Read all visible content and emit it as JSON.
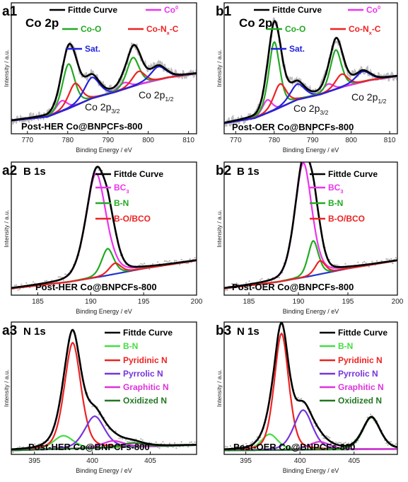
{
  "figure": {
    "panels": [
      {
        "id": "a1",
        "tag": "a1",
        "element": "Co 2p",
        "sample": "Post-HER Co@BNPCFs-800",
        "xlabel": "Binding Energy / eV",
        "ylabel": "Intensity / a.u.",
        "xlim": [
          766,
          812
        ],
        "xticks": [
          770,
          780,
          790,
          800,
          810
        ],
        "annotations": [
          {
            "text": "Co 2p",
            "sub": "3/2"
          },
          {
            "text": "Co 2p",
            "sub": "1/2"
          }
        ],
        "legend": [
          {
            "name": "Fittde Curve",
            "color": "#000000"
          },
          {
            "name": "Co",
            "sup": "0",
            "color": "#ee33ee"
          },
          {
            "name": "Co-O",
            "color": "#22aa22"
          },
          {
            "name": "Co-N",
            "sub": "x",
            "suffix": "-C",
            "color": "#ee2222"
          },
          {
            "name": "Sat.",
            "color": "#2222dd"
          }
        ]
      },
      {
        "id": "b1",
        "tag": "b1",
        "element": "Co 2p",
        "sample": "Post-OER Co@BNPCFs-800",
        "xlabel": "Binding Energy / eV",
        "ylabel": "Intensity / a.u.",
        "xlim": [
          767,
          812
        ],
        "xticks": [
          770,
          780,
          790,
          800,
          810
        ],
        "annotations": [
          {
            "text": "Co 2p",
            "sub": "3/2"
          },
          {
            "text": "Co 2p",
            "sub": "1/2"
          }
        ],
        "legend": [
          {
            "name": "Fittde Curve",
            "color": "#000000"
          },
          {
            "name": "Co",
            "sup": "0",
            "color": "#ee33ee"
          },
          {
            "name": "Co-O",
            "color": "#22aa22"
          },
          {
            "name": "Co-N",
            "sub": "x",
            "suffix": "-C",
            "color": "#ee2222"
          },
          {
            "name": "Sat.",
            "color": "#2222dd"
          }
        ]
      },
      {
        "id": "a2",
        "tag": "a2",
        "element": "B 1s",
        "sample": "Post-HER Co@BNPCFs-800",
        "xlabel": "Binding Energy / eV",
        "ylabel": "Intensity / a.u.",
        "xlim": [
          182.5,
          200
        ],
        "xticks": [
          185,
          190,
          195,
          200
        ],
        "legend": [
          {
            "name": "Fittde Curve",
            "color": "#000000"
          },
          {
            "name": "BC",
            "sub": "3",
            "color": "#ee33ee"
          },
          {
            "name": "B-N",
            "color": "#22aa22"
          },
          {
            "name": "B-O/BCO",
            "color": "#ee2222"
          }
        ]
      },
      {
        "id": "b2",
        "tag": "b2",
        "element": "B 1s",
        "sample": "Post-OER Co@BNPCFs-800",
        "xlabel": "Binding Energy / eV",
        "ylabel": "Intensity / a.u.",
        "xlim": [
          182.5,
          200
        ],
        "xticks": [
          185,
          190,
          195,
          200
        ],
        "legend": [
          {
            "name": "Fittde Curve",
            "color": "#000000"
          },
          {
            "name": "BC",
            "sub": "3",
            "color": "#ee33ee"
          },
          {
            "name": "B-N",
            "color": "#22aa22"
          },
          {
            "name": "B-O/BCO",
            "color": "#ee2222"
          }
        ]
      },
      {
        "id": "a3",
        "tag": "a3",
        "element": "N 1s",
        "sample": "Post-HER Co@BNPCFs-800",
        "xlabel": "Binding Energy / eV",
        "ylabel": "Intensity / a.u.",
        "xlim": [
          393,
          409
        ],
        "xticks": [
          395,
          400,
          405
        ],
        "legend": [
          {
            "name": "Fittde Curve",
            "color": "#000000"
          },
          {
            "name": "B-N",
            "color": "#44dd44"
          },
          {
            "name": "Pyridinic N",
            "color": "#ee2222"
          },
          {
            "name": "Pyrrolic N",
            "color": "#7733dd"
          },
          {
            "name": "Graphitic N",
            "color": "#dd33dd"
          },
          {
            "name": "Oxidized N",
            "color": "#227722"
          }
        ]
      },
      {
        "id": "b3",
        "tag": "b3",
        "element": "N 1s",
        "sample": "Post-OER Co@BNPCFs-800",
        "xlabel": "Binding Energy / eV",
        "ylabel": "Intensity / a.u.",
        "xlim": [
          393,
          409
        ],
        "xticks": [
          395,
          400,
          405
        ],
        "legend": [
          {
            "name": "Fittde Curve",
            "color": "#000000"
          },
          {
            "name": "B-N",
            "color": "#44dd44"
          },
          {
            "name": "Pyridinic N",
            "color": "#ee2222"
          },
          {
            "name": "Pyrrolic N",
            "color": "#7733dd"
          },
          {
            "name": "Graphitic N",
            "color": "#dd33dd"
          },
          {
            "name": "Oxidized N",
            "color": "#227722"
          }
        ]
      }
    ]
  },
  "chart_data": [
    {
      "type": "line",
      "panel": "a1",
      "xlim": [
        766,
        812
      ],
      "ylim": [
        0,
        1
      ],
      "background": {
        "color": "#2233cc",
        "points": [
          [
            766,
            0.1
          ],
          [
            775,
            0.13
          ],
          [
            780,
            0.19
          ],
          [
            786,
            0.27
          ],
          [
            792,
            0.32
          ],
          [
            798,
            0.38
          ],
          [
            805,
            0.43
          ],
          [
            812,
            0.46
          ]
        ]
      },
      "peaks": [
        {
          "name": "Co",
          "color": "#ee33ee",
          "center": 778.5,
          "height": 0.08,
          "width": 1.4
        },
        {
          "name": "Co-O",
          "color": "#22aa22",
          "center": 780.2,
          "height": 0.34,
          "width": 1.6
        },
        {
          "name": "Co-N-C",
          "color": "#ee2222",
          "center": 781.8,
          "height": 0.17,
          "width": 1.7
        },
        {
          "name": "Sat.",
          "color": "#2222dd",
          "center": 786.0,
          "height": 0.16,
          "width": 2.0
        },
        {
          "name": "Co",
          "color": "#ee33ee",
          "center": 794.0,
          "height": 0.05,
          "width": 1.5
        },
        {
          "name": "Co-O",
          "color": "#22aa22",
          "center": 796.2,
          "height": 0.22,
          "width": 1.6
        },
        {
          "name": "Co-N-C",
          "color": "#ee2222",
          "center": 797.6,
          "height": 0.1,
          "width": 1.7
        },
        {
          "name": "Sat.",
          "color": "#2222dd",
          "center": 802.5,
          "height": 0.1,
          "width": 2.0
        }
      ]
    },
    {
      "type": "line",
      "panel": "b1",
      "xlim": [
        767,
        812
      ],
      "ylim": [
        0,
        1
      ],
      "background": {
        "color": "#2233cc",
        "points": [
          [
            767,
            0.08
          ],
          [
            775,
            0.12
          ],
          [
            780,
            0.18
          ],
          [
            786,
            0.26
          ],
          [
            792,
            0.3
          ],
          [
            798,
            0.36
          ],
          [
            805,
            0.41
          ],
          [
            812,
            0.44
          ]
        ]
      },
      "peaks": [
        {
          "name": "Co",
          "color": "#ee33ee",
          "center": 778.2,
          "height": 0.1,
          "width": 1.3
        },
        {
          "name": "Co-O",
          "color": "#22aa22",
          "center": 780.0,
          "height": 0.52,
          "width": 1.5
        },
        {
          "name": "Co-N-C",
          "color": "#ee2222",
          "center": 781.5,
          "height": 0.18,
          "width": 1.7
        },
        {
          "name": "Sat.",
          "color": "#2222dd",
          "center": 786.0,
          "height": 0.12,
          "width": 2.0
        },
        {
          "name": "Co",
          "color": "#ee33ee",
          "center": 794.0,
          "height": 0.06,
          "width": 1.4
        },
        {
          "name": "Co-O",
          "color": "#22aa22",
          "center": 796.0,
          "height": 0.3,
          "width": 1.5
        },
        {
          "name": "Co-N-C",
          "color": "#ee2222",
          "center": 797.5,
          "height": 0.1,
          "width": 1.7
        },
        {
          "name": "Sat.",
          "color": "#2222dd",
          "center": 803.0,
          "height": 0.08,
          "width": 2.0
        }
      ]
    },
    {
      "type": "line",
      "panel": "a2",
      "xlim": [
        182.5,
        200
      ],
      "ylim": [
        0,
        1
      ],
      "background": {
        "color": "#2233cc",
        "points": [
          [
            182.5,
            0.05
          ],
          [
            188,
            0.1
          ],
          [
            191,
            0.14
          ],
          [
            195,
            0.2
          ],
          [
            200,
            0.26
          ]
        ]
      },
      "peaks": [
        {
          "name": "BC3",
          "color": "#ee33ee",
          "center": 190.5,
          "height": 0.78,
          "width": 1.0
        },
        {
          "name": "B-N",
          "color": "#22aa22",
          "center": 191.6,
          "height": 0.2,
          "width": 0.6
        },
        {
          "name": "B-O/BCO",
          "color": "#ee2222",
          "center": 192.3,
          "height": 0.08,
          "width": 0.6
        }
      ]
    },
    {
      "type": "line",
      "panel": "b2",
      "xlim": [
        182.5,
        200
      ],
      "ylim": [
        0,
        1
      ],
      "background": {
        "color": "#2233cc",
        "points": [
          [
            182.5,
            0.05
          ],
          [
            188,
            0.1
          ],
          [
            191,
            0.14
          ],
          [
            195,
            0.2
          ],
          [
            200,
            0.26
          ]
        ]
      },
      "peaks": [
        {
          "name": "BC3",
          "color": "#ee33ee",
          "center": 190.5,
          "height": 0.86,
          "width": 0.9
        },
        {
          "name": "B-N",
          "color": "#22aa22",
          "center": 191.5,
          "height": 0.26,
          "width": 0.55
        },
        {
          "name": "B-O/BCO",
          "color": "#ee2222",
          "center": 192.2,
          "height": 0.1,
          "width": 0.55
        }
      ]
    },
    {
      "type": "line",
      "panel": "a3",
      "xlim": [
        393,
        409
      ],
      "ylim": [
        0,
        1
      ],
      "background": {
        "color": "#3344cc",
        "points": [
          [
            393,
            0.03
          ],
          [
            409,
            0.07
          ]
        ]
      },
      "peaks": [
        {
          "name": "B-N",
          "color": "#44dd44",
          "center": 397.5,
          "height": 0.1,
          "width": 0.9
        },
        {
          "name": "Pyridinic N",
          "color": "#ee2222",
          "center": 398.3,
          "height": 0.8,
          "width": 0.75
        },
        {
          "name": "Pyrrolic N",
          "color": "#7733dd",
          "center": 400.2,
          "height": 0.24,
          "width": 0.9
        },
        {
          "name": "Graphitic N",
          "color": "#dd33dd",
          "center": 401.8,
          "height": 0.05,
          "width": 1.0
        },
        {
          "name": "Oxidized N",
          "color": "#227722",
          "center": 403.5,
          "height": 0.03,
          "width": 1.0
        }
      ]
    },
    {
      "type": "line",
      "panel": "b3",
      "xlim": [
        393,
        409
      ],
      "ylim": [
        0,
        1
      ],
      "background": {
        "color": "#3344cc",
        "points": [
          [
            393,
            0.03
          ],
          [
            409,
            0.04
          ]
        ]
      },
      "peaks": [
        {
          "name": "B-N",
          "color": "#44dd44",
          "center": 397.2,
          "height": 0.12,
          "width": 0.8
        },
        {
          "name": "Pyridinic N",
          "color": "#ee2222",
          "center": 398.3,
          "height": 0.88,
          "width": 0.7
        },
        {
          "name": "Pyrrolic N",
          "color": "#7733dd",
          "center": 400.3,
          "height": 0.3,
          "width": 0.9
        },
        {
          "name": "Graphitic N",
          "color": "#dd33dd",
          "center": 401.8,
          "height": 0.06,
          "width": 1.0
        },
        {
          "name": "Oxidized N",
          "color": "#227722",
          "center": 406.6,
          "height": 0.24,
          "width": 0.85
        }
      ]
    }
  ]
}
